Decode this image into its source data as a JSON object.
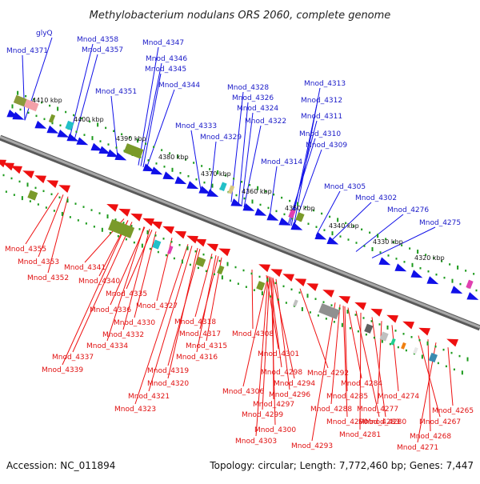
{
  "title": "Methylobacterium nodulans ORS 2060, complete genome",
  "footer": {
    "accession": "Accession: NC_011894",
    "summary": "Topology: circular; Length: 7,772,460 bp; Genes: 7,447"
  },
  "colors": {
    "forward_gene": "#1010e8",
    "reverse_gene": "#ee1010",
    "backbone": "#8c8c8c",
    "tick_green": "#1a9a1a"
  },
  "scale_labels": [
    "4410 kbp",
    "4400 kbp",
    "4390 kbp",
    "4380 kbp",
    "4370 kbp",
    "4360 kbp",
    "4350 kbp",
    "4340 kbp",
    "4330 kbp",
    "4320 kbp"
  ],
  "top_labels": [
    "glyQ",
    "Mnod_4371",
    "Mnod_4358",
    "Mnod_4357",
    "Mnod_4347",
    "Mnod_4346",
    "Mnod_4345",
    "Mnod_4351",
    "Mnod_4344",
    "Mnod_4328",
    "Mnod_4326",
    "Mnod_4324",
    "Mnod_4322",
    "Mnod_4333",
    "Mnod_4329",
    "Mnod_4313",
    "Mnod_4312",
    "Mnod_4311",
    "Mnod_4310",
    "Mnod_4309",
    "Mnod_4314",
    "Mnod_4305",
    "Mnod_4302",
    "Mnod_4276",
    "Mnod_4275"
  ],
  "bottom_labels": [
    "Mnod_4355",
    "Mnod_4353",
    "Mnod_4352",
    "Mnod_4341",
    "Mnod_4340",
    "Mnod_4335",
    "Mnod_4336",
    "Mnod_4330",
    "Mnod_4332",
    "Mnod_4334",
    "Mnod_4337",
    "Mnod_4339",
    "Mnod_4327",
    "Mnod_4318",
    "Mnod_4317",
    "Mnod_4315",
    "Mnod_4316",
    "Mnod_4319",
    "Mnod_4320",
    "Mnod_4321",
    "Mnod_4323",
    "Mnod_4308",
    "Mnod_4301",
    "Mnod_4298",
    "Mnod_4294",
    "Mnod_4292",
    "Mnod_4306",
    "Mnod_4296",
    "Mnod_4297",
    "Mnod_4299",
    "Mnod_4300",
    "Mnod_4303",
    "Mnod_4284",
    "Mnod_4285",
    "Mnod_4288",
    "Mnod_4290",
    "Mnod_4293",
    "Mnod_4283",
    "Mnod_4281",
    "Mnod_4280",
    "Mnod_4277",
    "Mnod_4274",
    "Mnod_4267",
    "Mnod_4268",
    "Mnod_4271",
    "Mnod_4265"
  ]
}
